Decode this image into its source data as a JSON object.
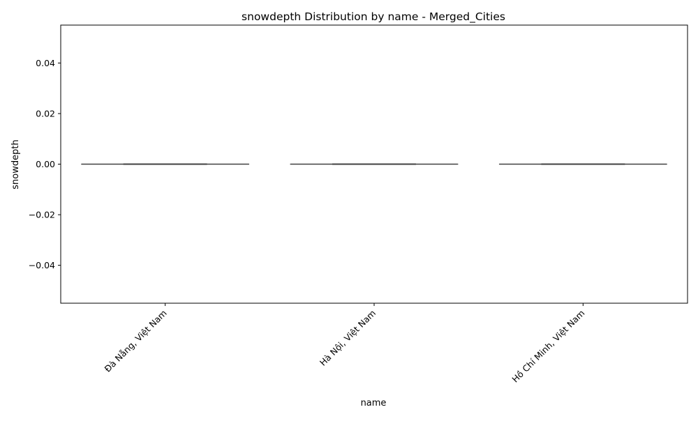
{
  "chart_data": {
    "type": "box",
    "title": "snowdepth Distribution by name - Merged_Cities",
    "xlabel": "name",
    "ylabel": "snowdepth",
    "categories": [
      "Đà Nẵng, Việt Nam",
      "Hà Nội, Việt Nam",
      "Hồ Chí Minh, Việt Nam"
    ],
    "boxes": [
      {
        "category": "Đà Nẵng, Việt Nam",
        "min": 0,
        "q1": 0,
        "median": 0,
        "q3": 0,
        "max": 0
      },
      {
        "category": "Hà Nội, Việt Nam",
        "min": 0,
        "q1": 0,
        "median": 0,
        "q3": 0,
        "max": 0
      },
      {
        "category": "Hồ Chí Minh, Việt Nam",
        "min": 0,
        "q1": 0,
        "median": 0,
        "q3": 0,
        "max": 0
      }
    ],
    "ylim": [
      -0.055,
      0.055
    ],
    "yticks": [
      -0.04,
      -0.02,
      0.0,
      0.02,
      0.04
    ],
    "ytick_labels": [
      "−0.04",
      "−0.02",
      "0.00",
      "0.02",
      "0.04"
    ],
    "grid": false,
    "colors": {
      "box_line": "#3f3f3f",
      "axes": "#000000"
    }
  }
}
